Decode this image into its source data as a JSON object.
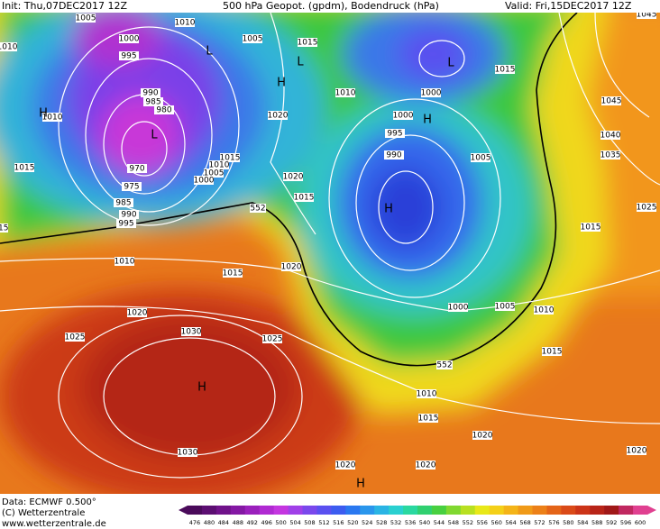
{
  "header": {
    "init": "Init: Thu,07DEC2017 12Z",
    "title": "500 hPa Geopot. (gpdm), Bodendruck (hPa)",
    "valid": "Valid: Fri,15DEC2017 12Z"
  },
  "footer": {
    "data": "Data: ECMWF  0.500°",
    "copyright": "(C) Wetterzentrale",
    "url": "www.wetterzentrale.de"
  },
  "isobar_labels": [
    1005,
    1010,
    1000,
    995,
    1005,
    1015,
    1010,
    1000,
    1015,
    990,
    985,
    980,
    1020,
    1000,
    995,
    990,
    970,
    975,
    985,
    990,
    995,
    1015,
    1010,
    1005,
    1000,
    1020,
    1015,
    1005,
    1045,
    1040,
    1035,
    1015,
    1025,
    1010,
    1015,
    1020,
    1020,
    1025,
    1030,
    1025,
    1000,
    1005,
    1010,
    1015,
    1030,
    1010,
    1015,
    1020,
    1020,
    1020,
    1020,
    1010,
    1010,
    1015,
    1015,
    1045
  ],
  "height_labels": [
    552,
    552
  ],
  "pressure_centers": [
    "H",
    "L",
    "H",
    "L",
    "H",
    "L",
    "H",
    "H",
    "H",
    "L"
  ],
  "colorbar": {
    "ticks": [
      476,
      480,
      484,
      488,
      492,
      496,
      500,
      504,
      508,
      512,
      516,
      520,
      524,
      528,
      532,
      536,
      540,
      544,
      548,
      552,
      556,
      560,
      564,
      568,
      572,
      576,
      580,
      584,
      588,
      592,
      596,
      600
    ],
    "colors": [
      "#4a0a5a",
      "#5c0e72",
      "#70128a",
      "#8418a4",
      "#9a20bc",
      "#b02ad2",
      "#c436e0",
      "#a040e8",
      "#7a48ec",
      "#5a50f0",
      "#3c5cf0",
      "#2a78f0",
      "#2a96ec",
      "#2ab4e4",
      "#2ad0d0",
      "#2ad8a0",
      "#30d070",
      "#48d040",
      "#80d830",
      "#b8e020",
      "#e8e818",
      "#f4d018",
      "#f4b418",
      "#f09a18",
      "#ec8018",
      "#e46418",
      "#da4a18",
      "#cc3418",
      "#b82418",
      "#a01818",
      "#c02860",
      "#e04090"
    ]
  }
}
